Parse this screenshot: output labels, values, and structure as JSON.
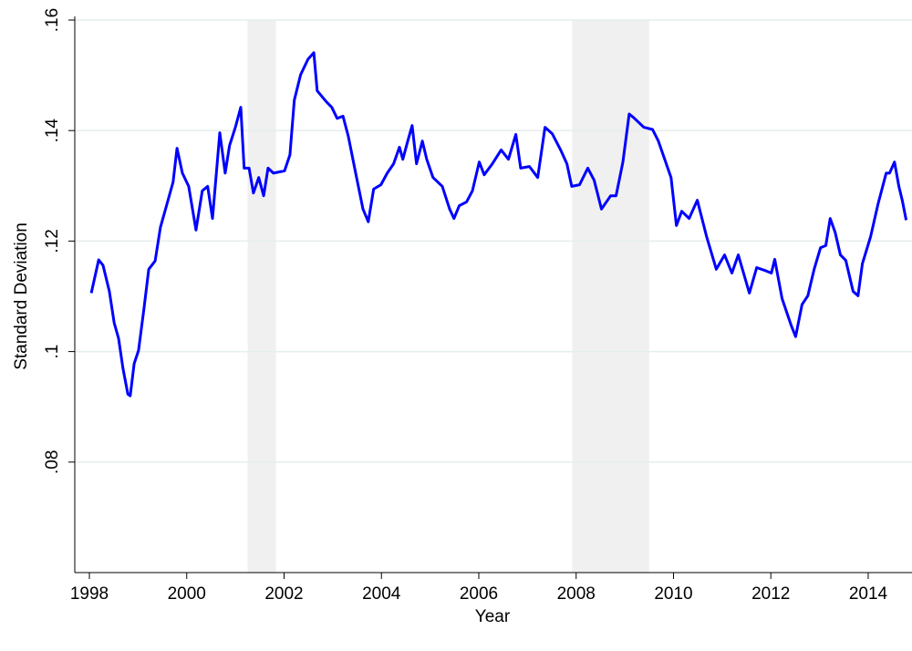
{
  "chart_data": {
    "type": "line",
    "x_label": "Year",
    "y_label": "Standard Deviation",
    "xlim": [
      1997.7,
      2014.9
    ],
    "xticks": [
      1998,
      2000,
      2002,
      2004,
      2006,
      2008,
      2010,
      2012,
      2014
    ],
    "ylim": [
      0.06,
      0.16
    ],
    "yticks": [
      {
        "value": 0.08,
        "label": ".08"
      },
      {
        "value": 0.1,
        "label": ".1"
      },
      {
        "value": 0.12,
        "label": ".12"
      },
      {
        "value": 0.14,
        "label": ".14"
      },
      {
        "value": 0.16,
        "label": ".16"
      }
    ],
    "grid": true,
    "shaded_regions": [
      [
        2001.25,
        2001.83
      ],
      [
        2007.92,
        2009.5
      ]
    ],
    "shade_color": "#f0f0f0",
    "x": [
      1998.04,
      1998.19,
      1998.28,
      1998.41,
      1998.51,
      1998.6,
      1998.69,
      1998.79,
      1998.84,
      1998.92,
      1999.01,
      1999.12,
      1999.22,
      1999.35,
      1999.46,
      1999.59,
      1999.72,
      1999.8,
      1999.91,
      2000.04,
      2000.19,
      2000.32,
      2000.43,
      2000.53,
      2000.68,
      2000.79,
      2000.88,
      2001.0,
      2001.11,
      2001.18,
      2001.28,
      2001.37,
      2001.48,
      2001.58,
      2001.67,
      2001.78,
      2002.01,
      2002.12,
      2002.21,
      2002.34,
      2002.49,
      2002.61,
      2002.68,
      2002.87,
      2002.98,
      2003.09,
      2003.21,
      2003.32,
      2003.47,
      2003.62,
      2003.73,
      2003.84,
      2003.99,
      2004.12,
      2004.25,
      2004.37,
      2004.44,
      2004.54,
      2004.63,
      2004.72,
      2004.84,
      2004.93,
      2005.06,
      2005.25,
      2005.4,
      2005.49,
      2005.6,
      2005.75,
      2005.87,
      2006.01,
      2006.11,
      2006.28,
      2006.46,
      2006.61,
      2006.76,
      2006.86,
      2007.04,
      2007.21,
      2007.36,
      2007.51,
      2007.68,
      2007.81,
      2007.91,
      2008.07,
      2008.24,
      2008.37,
      2008.52,
      2008.71,
      2008.82,
      2008.96,
      2009.09,
      2009.2,
      2009.39,
      2009.57,
      2009.69,
      2009.84,
      2009.95,
      2010.06,
      2010.17,
      2010.32,
      2010.49,
      2010.68,
      2010.88,
      2011.05,
      2011.2,
      2011.33,
      2011.56,
      2011.71,
      2011.9,
      2012.01,
      2012.08,
      2012.23,
      2012.42,
      2012.51,
      2012.64,
      2012.76,
      2012.89,
      2013.02,
      2013.13,
      2013.22,
      2013.32,
      2013.43,
      2013.54,
      2013.69,
      2013.79,
      2013.88,
      2014.05,
      2014.2,
      2014.37,
      2014.44,
      2014.54,
      2014.63,
      2014.7,
      2014.78
    ],
    "series": [
      {
        "color": "#0000ff",
        "values": [
          0.1106,
          0.1166,
          0.1156,
          0.1109,
          0.1052,
          0.1024,
          0.097,
          0.0923,
          0.092,
          0.0978,
          0.1002,
          0.1077,
          0.1149,
          0.1164,
          0.1225,
          0.1266,
          0.1307,
          0.1368,
          0.1323,
          0.1299,
          0.122,
          0.1291,
          0.1299,
          0.1241,
          0.1396,
          0.1323,
          0.1373,
          0.1406,
          0.1442,
          0.1332,
          0.1332,
          0.1287,
          0.1315,
          0.1282,
          0.1332,
          0.1323,
          0.1327,
          0.1356,
          0.1455,
          0.1501,
          0.1529,
          0.1541,
          0.1472,
          0.1452,
          0.1442,
          0.1422,
          0.1426,
          0.1389,
          0.1323,
          0.1258,
          0.1235,
          0.1294,
          0.1302,
          0.1323,
          0.134,
          0.137,
          0.1348,
          0.1381,
          0.1409,
          0.134,
          0.1381,
          0.1348,
          0.1315,
          0.1299,
          0.1258,
          0.1241,
          0.1264,
          0.1271,
          0.1291,
          0.1343,
          0.132,
          0.134,
          0.1365,
          0.1348,
          0.1393,
          0.1332,
          0.1335,
          0.1315,
          0.1406,
          0.1394,
          0.1365,
          0.134,
          0.1299,
          0.1302,
          0.1332,
          0.131,
          0.1258,
          0.1282,
          0.1282,
          0.1343,
          0.143,
          0.1422,
          0.1406,
          0.1402,
          0.1381,
          0.1343,
          0.1315,
          0.1228,
          0.1254,
          0.1241,
          0.1274,
          0.1208,
          0.1149,
          0.1175,
          0.1142,
          0.1175,
          0.1106,
          0.1152,
          0.1146,
          0.1142,
          0.1167,
          0.1096,
          0.1047,
          0.1027,
          0.1085,
          0.1101,
          0.1149,
          0.1188,
          0.1192,
          0.1241,
          0.1216,
          0.1175,
          0.1165,
          0.1109,
          0.1101,
          0.1159,
          0.1208,
          0.1266,
          0.1323,
          0.1323,
          0.1343,
          0.1299,
          0.1274,
          0.1238
        ]
      }
    ]
  }
}
